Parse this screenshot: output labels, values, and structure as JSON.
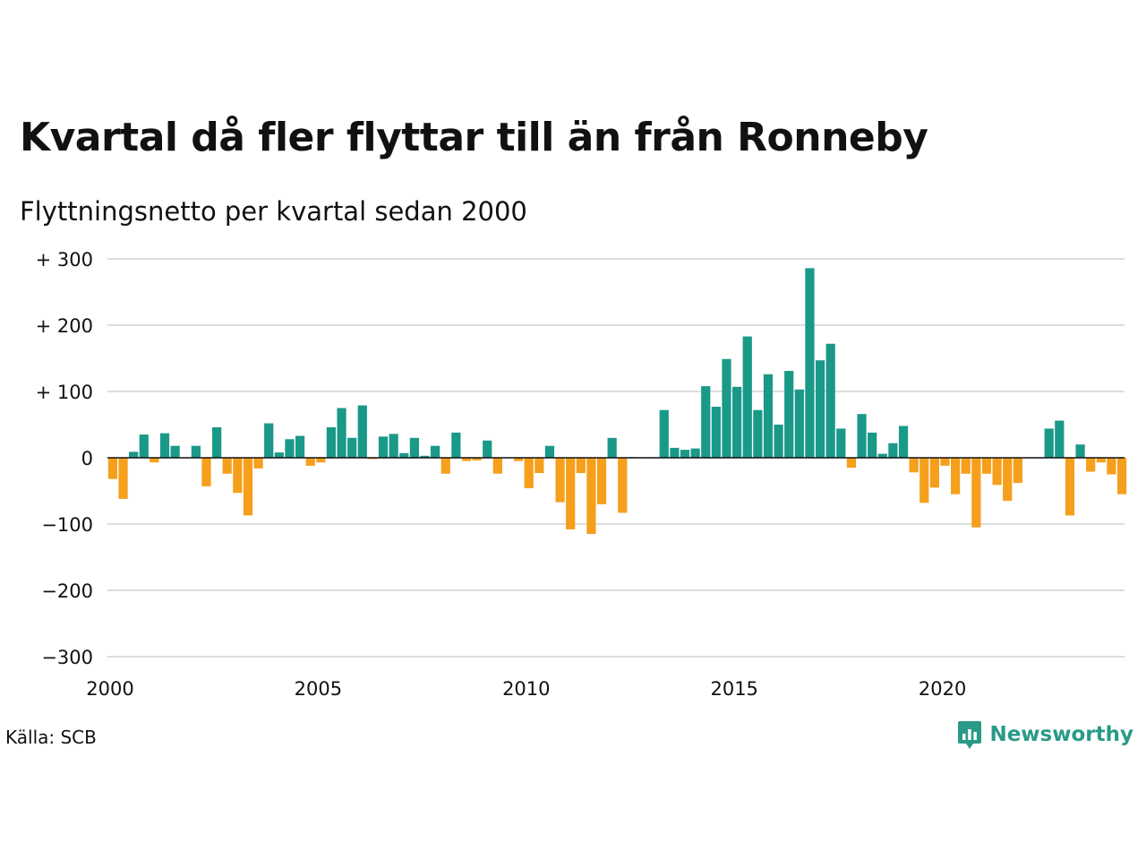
{
  "title": "Kvartal då fler flyttar till än från Ronneby",
  "subtitle": "Flyttningsnetto per kvartal sedan 2000",
  "source": "Källa: SCB",
  "brand": "Newsworthy",
  "colors": {
    "positive": "#1a9988",
    "negative": "#f59f1c",
    "grid": "#dddddd",
    "zero_line": "#111111"
  },
  "chart_data": {
    "type": "bar",
    "x_start": "2000 Q1",
    "x_tick_labels": [
      "2000",
      "2005",
      "2010",
      "2015",
      "2020"
    ],
    "y_tick_values": [
      300,
      200,
      100,
      0,
      -100,
      -200,
      -300
    ],
    "y_tick_labels": [
      "+ 300",
      "+ 200",
      "+ 100",
      "0",
      "−100",
      "−200",
      "−300"
    ],
    "ylim": [
      -300,
      300
    ],
    "grid": true,
    "series": [
      {
        "values": [
          -32,
          -62,
          9,
          35,
          -7,
          37,
          18,
          0,
          18,
          -43,
          46,
          -24,
          -53,
          -87,
          -16,
          52,
          8,
          28,
          33,
          -12,
          -7,
          46,
          75,
          30,
          79,
          -2,
          32,
          36,
          7,
          30,
          3,
          18,
          -24,
          38,
          -5,
          -4,
          26,
          -24,
          0,
          -5,
          -46,
          -23,
          18,
          -67,
          -108,
          -23,
          -115,
          -70,
          30,
          -83,
          1,
          0,
          -1,
          72,
          15,
          12,
          14,
          108,
          77,
          149,
          107,
          183,
          72,
          126,
          50,
          131,
          103,
          286,
          147,
          172,
          44,
          -15,
          66,
          38,
          6,
          22,
          48,
          -22,
          -68,
          -45,
          -12,
          -55,
          -24,
          -105,
          -24,
          -41,
          -65,
          -38,
          0,
          0,
          44,
          56,
          -87,
          20,
          -21,
          -7,
          -25,
          -55
        ]
      }
    ]
  }
}
